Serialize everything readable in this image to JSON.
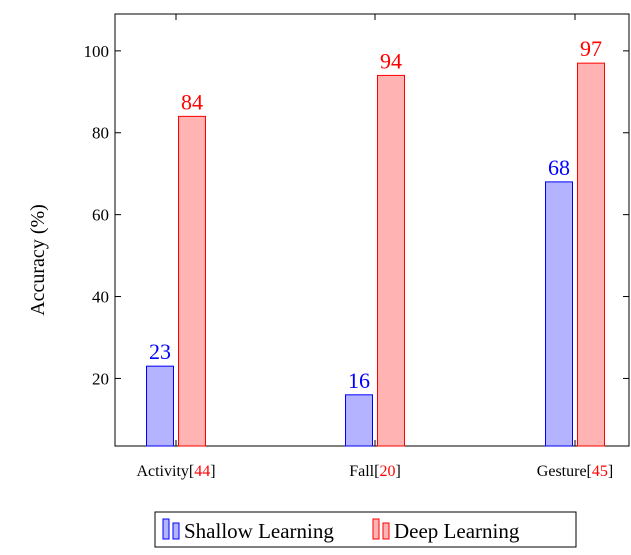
{
  "chart_data": {
    "type": "bar",
    "title": "",
    "xlabel": "",
    "ylabel": "Accuracy (%)",
    "ylim": [
      3.5,
      109
    ],
    "yticks": [
      20,
      40,
      60,
      80,
      100
    ],
    "categories": [
      {
        "name": "Activity",
        "ref": "44"
      },
      {
        "name": "Fall",
        "ref": "20"
      },
      {
        "name": "Gesture",
        "ref": "45"
      }
    ],
    "series": [
      {
        "name": "Shallow Learning",
        "values": [
          23,
          16,
          68
        ],
        "fill": "#b3b3ff",
        "stroke": "#0000ff",
        "label_color": "#0000ff"
      },
      {
        "name": "Deep Learning",
        "values": [
          84,
          94,
          97
        ],
        "fill": "#ffb3b3",
        "stroke": "#ff0000",
        "label_color": "#ff0000"
      }
    ],
    "ref_color": "#ff0000",
    "grid": false,
    "legend_position": "bottom-center"
  }
}
